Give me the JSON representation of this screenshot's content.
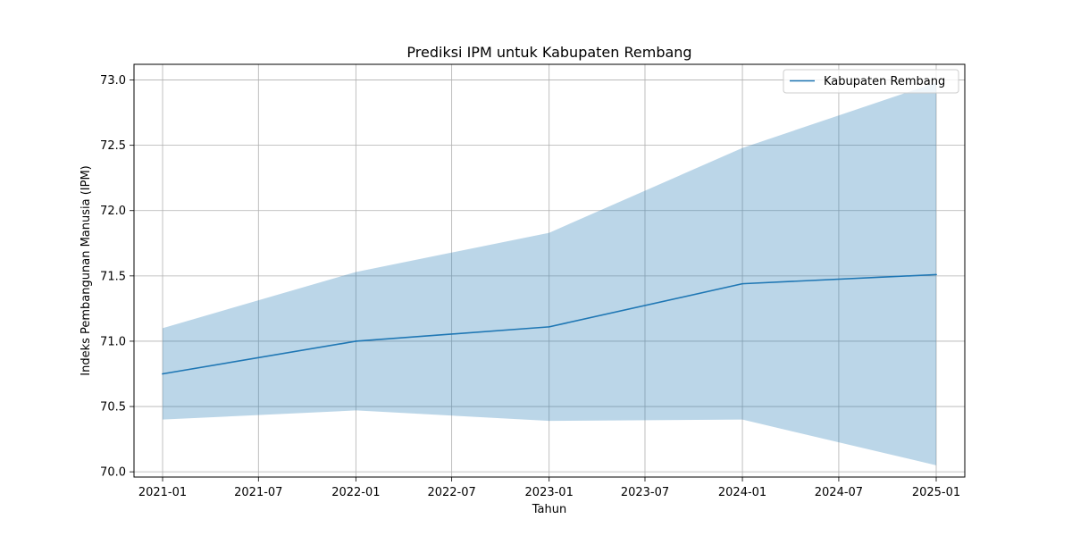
{
  "chart_data": {
    "type": "line",
    "title": "Prediksi IPM untuk Kabupaten Rembang",
    "xlabel": "Tahun",
    "ylabel": "Indeks Pembangunan Manusia (IPM)",
    "x_tick_labels": [
      "2021-01",
      "2021-07",
      "2022-01",
      "2022-07",
      "2023-01",
      "2023-07",
      "2024-01",
      "2024-07",
      "2025-01"
    ],
    "y_tick_labels": [
      "70.0",
      "70.5",
      "71.0",
      "71.5",
      "72.0",
      "72.5",
      "73.0"
    ],
    "y_ticks": [
      70.0,
      70.5,
      71.0,
      71.5,
      72.0,
      72.5,
      73.0
    ],
    "ylim": [
      69.96,
      73.12
    ],
    "xlim": [
      "2020-11-08",
      "2025-02-24"
    ],
    "grid": true,
    "legend_position": "top-right",
    "series": [
      {
        "name": "Kabupaten Rembang",
        "x": [
          "2021-01-01",
          "2022-01-01",
          "2023-01-01",
          "2024-01-01",
          "2025-01-01"
        ],
        "y": [
          70.75,
          71.0,
          71.11,
          71.44,
          71.51
        ],
        "lower": [
          70.4,
          70.47,
          70.39,
          70.4,
          70.05
        ],
        "upper": [
          71.1,
          71.53,
          71.83,
          72.48,
          72.98
        ]
      }
    ],
    "colors": {
      "line": "#1f77b4",
      "band": "#1f77b4",
      "grid": "#b0b0b0"
    }
  }
}
